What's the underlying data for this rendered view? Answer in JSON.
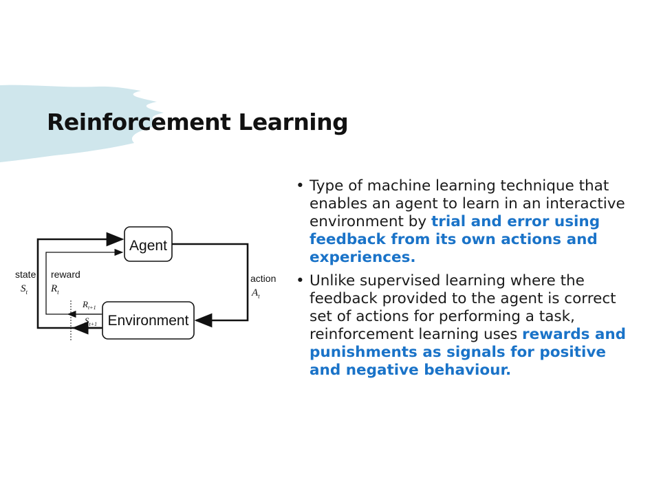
{
  "slide": {
    "title": "Reinforcement Learning",
    "accent_color": "#1a73c8",
    "brush_color": "#cfe6ec"
  },
  "diagram": {
    "agent_label": "Agent",
    "environment_label": "Environment",
    "state_label": "state",
    "state_symbol": "S",
    "state_sub": "t",
    "reward_label": "reward",
    "reward_symbol": "R",
    "reward_sub": "t",
    "action_label": "action",
    "action_symbol": "A",
    "action_sub": "t",
    "next_reward_symbol": "R",
    "next_reward_sub": "t+1",
    "next_state_symbol": "S",
    "next_state_sub": "t+1"
  },
  "bullets": [
    {
      "bullet": "•",
      "text": "Type of machine learning technique that enables an agent to learn in an interactive environment by ",
      "highlight": "trial and error using feedback from its own actions and experiences",
      "end": "."
    },
    {
      "bullet": "•",
      "text": "Unlike supervised learning where the feedback provided to the agent is correct set of actions for performing a task, reinforcement learning uses ",
      "highlight": "rewards and punishments as signals for positive and negative behaviour",
      "end": "."
    }
  ]
}
